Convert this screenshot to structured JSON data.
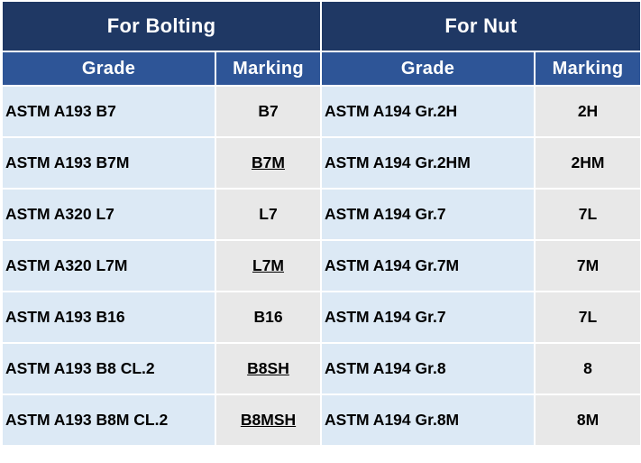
{
  "headers": {
    "bolting": "For Bolting",
    "nut": "For Nut",
    "grade": "Grade",
    "marking": "Marking"
  },
  "rows": [
    {
      "bolt_grade": "ASTM A193 B7",
      "bolt_marking": "B7",
      "nut_grade": "ASTM A194 Gr.2H",
      "nut_marking": "2H"
    },
    {
      "bolt_grade": "ASTM A193 B7M",
      "bolt_marking": "B7M",
      "nut_grade": "ASTM A194 Gr.2HM",
      "nut_marking": "2HM"
    },
    {
      "bolt_grade": "ASTM A320 L7",
      "bolt_marking": "L7",
      "nut_grade": "ASTM A194 Gr.7",
      "nut_marking": "7L"
    },
    {
      "bolt_grade": "ASTM A320 L7M",
      "bolt_marking": "L7M",
      "nut_grade": "ASTM A194 Gr.7M",
      "nut_marking": "7M"
    },
    {
      "bolt_grade": "ASTM A193 B16",
      "bolt_marking": "B16",
      "nut_grade": "ASTM A194 Gr.7",
      "nut_marking": "7L"
    },
    {
      "bolt_grade": "ASTM A193 B8 CL.2",
      "bolt_marking": "B8SH",
      "nut_grade": "ASTM A194 Gr.8",
      "nut_marking": "8"
    },
    {
      "bolt_grade": "ASTM A193 B8M CL.2",
      "bolt_marking": "B8MSH",
      "nut_grade": "ASTM A194 Gr.8M",
      "nut_marking": "8M"
    }
  ]
}
